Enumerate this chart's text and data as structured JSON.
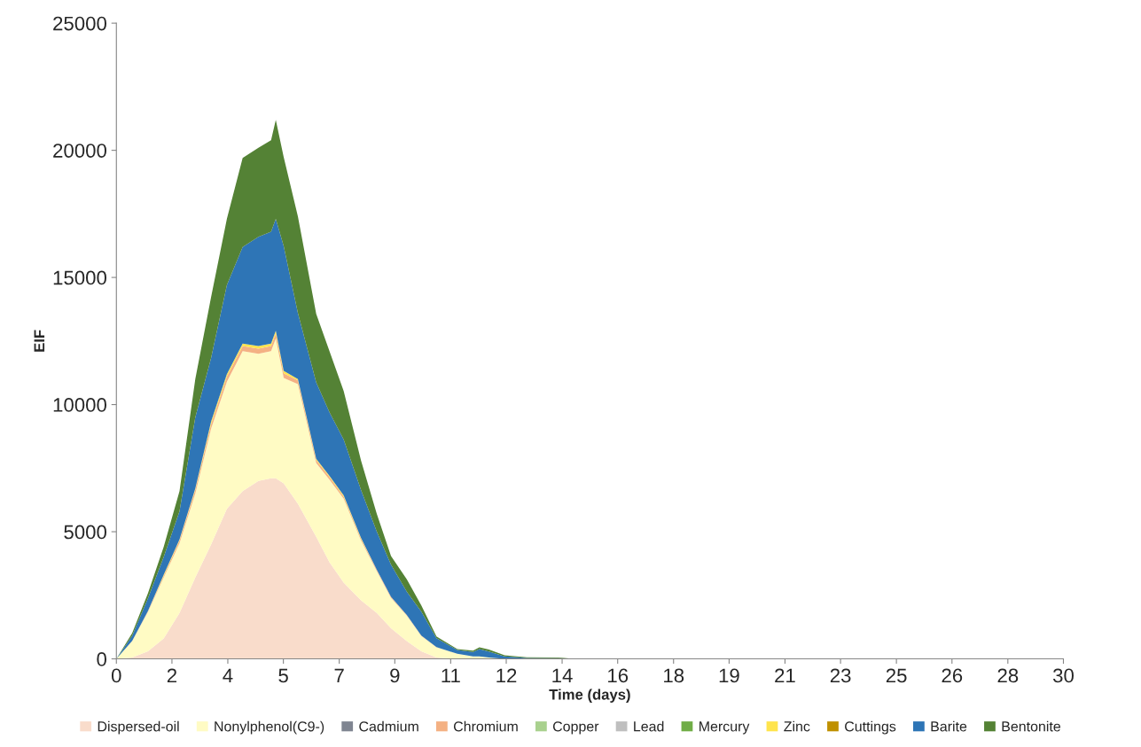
{
  "chart_data": {
    "type": "area",
    "stacked": true,
    "xlabel": "Time (days)",
    "ylabel": "EIF",
    "x": [
      0,
      0.5,
      1,
      1.5,
      2,
      2.5,
      3,
      3.5,
      4,
      4.5,
      4.9,
      5.05,
      5.3,
      5.75,
      6.33,
      6.75,
      7.2,
      7.75,
      8.25,
      8.7,
      9.2,
      9.66,
      10.14,
      10.8,
      11.3,
      11.5,
      11.8,
      12.3,
      13,
      14,
      14.5,
      30
    ],
    "series": [
      {
        "name": "Dispersed-oil",
        "color": "#f9dccb",
        "values": [
          0,
          50,
          300,
          800,
          1800,
          3200,
          4500,
          5900,
          6600,
          7000,
          7100,
          7100,
          6900,
          6100,
          4800,
          3800,
          3000,
          2300,
          1800,
          1200,
          700,
          300,
          50,
          0,
          0,
          0,
          0,
          0,
          0,
          0,
          0,
          0
        ]
      },
      {
        "name": "Nonylphenol(C9-)",
        "color": "#fffbc4",
        "values": [
          0,
          650,
          1550,
          2400,
          2750,
          3300,
          4550,
          5000,
          5500,
          5000,
          5000,
          5500,
          4150,
          4700,
          2900,
          3250,
          3300,
          2350,
          1650,
          1200,
          1000,
          600,
          400,
          200,
          100,
          100,
          50,
          0,
          0,
          0,
          0,
          0
        ]
      },
      {
        "name": "Cadmium",
        "color": "#7f8591",
        "values": [
          null,
          null,
          null,
          null,
          null,
          null,
          null,
          null,
          null,
          null,
          null,
          null,
          null,
          null,
          null,
          null,
          null,
          null,
          null,
          null,
          null,
          null,
          null,
          null,
          null,
          null,
          null,
          null,
          null,
          null,
          null,
          null
        ]
      },
      {
        "name": "Chromium",
        "color": "#f4b183",
        "values": [
          0,
          10,
          30,
          60,
          100,
          150,
          180,
          200,
          200,
          200,
          200,
          200,
          180,
          150,
          120,
          100,
          80,
          60,
          50,
          40,
          30,
          20,
          10,
          0,
          0,
          0,
          0,
          0,
          0,
          0,
          0,
          0
        ]
      },
      {
        "name": "Copper",
        "color": "#a9d18e",
        "values": [
          null,
          null,
          null,
          null,
          null,
          null,
          null,
          null,
          null,
          null,
          null,
          null,
          null,
          null,
          null,
          null,
          null,
          null,
          null,
          null,
          null,
          null,
          null,
          null,
          null,
          null,
          null,
          null,
          null,
          null,
          null,
          null
        ]
      },
      {
        "name": "Lead",
        "color": "#bfbfbf",
        "values": [
          null,
          null,
          null,
          null,
          null,
          null,
          null,
          null,
          null,
          null,
          null,
          null,
          null,
          null,
          null,
          null,
          null,
          null,
          null,
          null,
          null,
          null,
          null,
          null,
          null,
          null,
          null,
          null,
          null,
          null,
          null,
          null
        ]
      },
      {
        "name": "Mercury",
        "color": "#70ad47",
        "values": [
          null,
          null,
          null,
          null,
          null,
          null,
          null,
          null,
          null,
          null,
          null,
          null,
          null,
          null,
          null,
          null,
          null,
          null,
          null,
          null,
          null,
          null,
          null,
          null,
          null,
          null,
          null,
          null,
          null,
          null,
          null,
          null
        ]
      },
      {
        "name": "Zinc",
        "color": "#ffe44d",
        "values": [
          0,
          0,
          0,
          50,
          50,
          50,
          100,
          100,
          100,
          100,
          100,
          100,
          100,
          50,
          50,
          50,
          50,
          50,
          0,
          0,
          0,
          0,
          0,
          0,
          0,
          0,
          0,
          0,
          0,
          0,
          0,
          0
        ]
      },
      {
        "name": "Cuttings",
        "color": "#bf9000",
        "values": [
          null,
          null,
          null,
          null,
          null,
          null,
          null,
          null,
          null,
          null,
          null,
          null,
          null,
          null,
          null,
          null,
          null,
          null,
          null,
          null,
          null,
          null,
          null,
          null,
          null,
          null,
          null,
          null,
          null,
          null,
          null,
          null
        ]
      },
      {
        "name": "Barite",
        "color": "#2e75b6",
        "values": [
          0,
          200,
          500,
          700,
          1100,
          2800,
          2500,
          3500,
          3800,
          4300,
          4400,
          4400,
          4900,
          2600,
          3000,
          2500,
          2200,
          1880,
          1500,
          1260,
          910,
          940,
          350,
          150,
          170,
          280,
          240,
          100,
          40,
          30,
          0,
          0
        ]
      },
      {
        "name": "Bentonite",
        "color": "#548235",
        "values": [
          0,
          100,
          200,
          400,
          800,
          1500,
          2400,
          2600,
          3500,
          3500,
          3600,
          3900,
          3500,
          3800,
          2700,
          2400,
          1900,
          1160,
          700,
          340,
          490,
          240,
          70,
          30,
          50,
          70,
          80,
          40,
          20,
          20,
          0,
          0
        ]
      }
    ],
    "xlim": [
      0,
      30
    ],
    "xticks": [
      0,
      {
        "value": 1.76,
        "label": "2"
      },
      {
        "value": 3.53,
        "label": "4"
      },
      {
        "value": 5.29,
        "label": "5"
      },
      {
        "value": 7.06,
        "label": "7"
      },
      {
        "value": 8.82,
        "label": "9"
      },
      {
        "value": 10.59,
        "label": "11"
      },
      {
        "value": 12.35,
        "label": "12"
      },
      {
        "value": 14.12,
        "label": "14"
      },
      {
        "value": 15.88,
        "label": "16"
      },
      {
        "value": 17.65,
        "label": "18"
      },
      {
        "value": 19.41,
        "label": "19"
      },
      {
        "value": 21.18,
        "label": "21"
      },
      {
        "value": 22.94,
        "label": "23"
      },
      {
        "value": 24.71,
        "label": "25"
      },
      {
        "value": 26.47,
        "label": "26"
      },
      {
        "value": 28.24,
        "label": "28"
      },
      30
    ],
    "ylim": [
      0,
      25000
    ],
    "yticks": [
      0,
      5000,
      10000,
      15000,
      20000,
      25000
    ],
    "grid": false,
    "legend": "bottom"
  }
}
